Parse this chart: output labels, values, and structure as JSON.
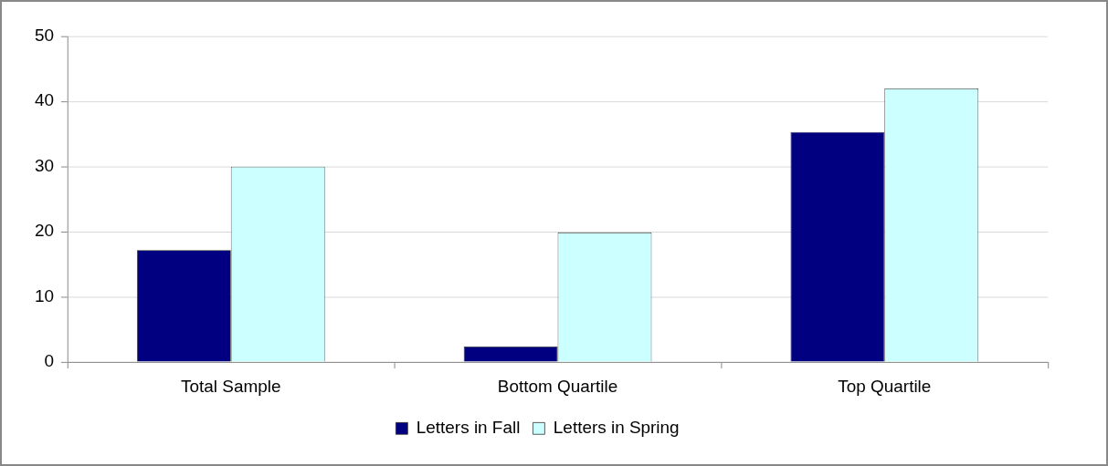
{
  "chart_data": {
    "type": "bar",
    "categories": [
      "Total Sample",
      "Bottom Quartile",
      "Top Quartile"
    ],
    "series": [
      {
        "name": "Letters in Fall",
        "color": "#000080",
        "values": [
          17.2,
          2.4,
          35.3
        ]
      },
      {
        "name": "Letters in Spring",
        "color": "#ccffff",
        "values": [
          30,
          19.9,
          42
        ]
      }
    ],
    "ylim": [
      0,
      50
    ],
    "yticks": [
      0,
      10,
      20,
      30,
      40,
      50
    ],
    "grid": "y",
    "legend": "bottom"
  }
}
